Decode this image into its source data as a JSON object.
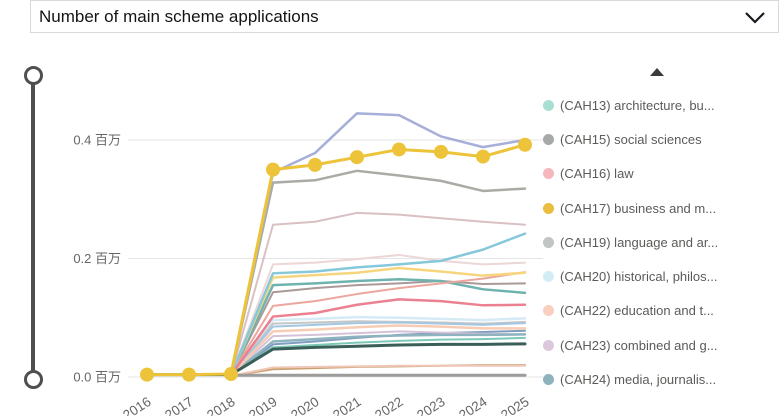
{
  "header": {
    "title": "Number of main scheme applications",
    "chevron_icon": "chevron-down"
  },
  "y_axis": {
    "labels": [
      "0.4 百万",
      "0.2 百万",
      "0.0 百万"
    ],
    "unit": "百万"
  },
  "x_axis": {
    "labels": [
      "2016",
      "2017",
      "2018",
      "2019",
      "2020",
      "2021",
      "2022",
      "2023",
      "2024",
      "2025"
    ]
  },
  "slider": {
    "type": "vertical-range",
    "handles": [
      "max",
      "min"
    ]
  },
  "legend": {
    "scroll_up_icon": "triangle-up",
    "items": [
      {
        "label": "(CAH13) architecture, bu...",
        "color": "#a9dfd3"
      },
      {
        "label": "(CAH15) social sciences",
        "color": "#a7a9a9"
      },
      {
        "label": "(CAH16) law",
        "color": "#f5b7bc"
      },
      {
        "label": "(CAH17) business and m...",
        "color": "#e9bd3e"
      },
      {
        "label": "(CAH19) language and ar...",
        "color": "#c2c5c5"
      },
      {
        "label": "(CAH20) historical, philos...",
        "color": "#d4ecf6"
      },
      {
        "label": "(CAH22) education and t...",
        "color": "#f9d0c0"
      },
      {
        "label": "(CAH23) combined and g...",
        "color": "#dcc7dc"
      },
      {
        "label": "(CAH24) media, journalis...",
        "color": "#8fb2bf"
      }
    ]
  },
  "chart_data": {
    "type": "line",
    "title": "Number of main scheme applications",
    "xlabel": "",
    "ylabel": "百万",
    "x": [
      "2016",
      "2017",
      "2018",
      "2019",
      "2020",
      "2021",
      "2022",
      "2023",
      "2024",
      "2025"
    ],
    "ylim": [
      0,
      0.46
    ],
    "gridlines": [
      0.4,
      0.2,
      0.0
    ],
    "grid": true,
    "legend_position": "right",
    "series": [
      {
        "name": "(CAH20) historical, philos...",
        "color": "#d5eaf5",
        "width": 2.5,
        "markers": false,
        "values": [
          null,
          null,
          0.003,
          0.096,
          0.098,
          0.101,
          0.1,
          0.098,
          0.096,
          0.099
        ]
      },
      {
        "name": "(CAH19) language and ar...",
        "color": "#c4c7c7",
        "width": 2,
        "markers": false,
        "values": [
          null,
          null,
          0.003,
          0.09,
          0.092,
          0.094,
          0.093,
          0.092,
          0.09,
          0.093
        ]
      },
      {
        "name": "",
        "color": "#a3c7e3",
        "width": 2,
        "markers": false,
        "values": [
          null,
          null,
          0.003,
          0.085,
          0.088,
          0.091,
          0.092,
          0.09,
          0.088,
          0.091
        ]
      },
      {
        "name": "",
        "color": "#ecd6d6",
        "width": 2,
        "markers": false,
        "values": [
          null,
          null,
          0.003,
          0.19,
          0.193,
          0.199,
          0.206,
          0.196,
          0.19,
          0.193
        ]
      },
      {
        "name": "",
        "color": "#ab9898",
        "width": 2,
        "markers": false,
        "values": [
          null,
          null,
          0.003,
          0.143,
          0.15,
          0.155,
          0.158,
          0.162,
          0.157,
          0.158
        ]
      },
      {
        "name": "",
        "color": "#7e9cc0",
        "width": 2,
        "markers": false,
        "values": [
          null,
          null,
          0.003,
          0.055,
          0.06,
          0.066,
          0.071,
          0.074,
          0.076,
          0.078
        ]
      },
      {
        "name": "(CAH23) combined and g...",
        "color": "#d5c2d8",
        "width": 2,
        "markers": false,
        "values": [
          null,
          null,
          0.003,
          0.069,
          0.071,
          0.074,
          0.077,
          0.075,
          0.073,
          0.072
        ]
      },
      {
        "name": "(CAH24) media, journalis...",
        "color": "#8fb2bf",
        "width": 2.5,
        "markers": false,
        "values": [
          null,
          null,
          0.003,
          0.06,
          0.064,
          0.068,
          0.07,
          0.071,
          0.071,
          0.072
        ]
      },
      {
        "name": "(CAH22) education and t...",
        "color": "#f7ccb4",
        "width": 2.5,
        "markers": false,
        "values": [
          null,
          null,
          0.003,
          0.077,
          0.08,
          0.084,
          0.087,
          0.085,
          0.082,
          0.082
        ]
      },
      {
        "name": "(CAH13) architecture, bu...",
        "color": "#7cc9b9",
        "width": 2,
        "markers": false,
        "values": [
          null,
          null,
          0.003,
          0.05,
          0.054,
          0.058,
          0.061,
          0.063,
          0.064,
          0.066
        ]
      },
      {
        "name": "",
        "color": "#6fb3ae",
        "width": 2.5,
        "markers": false,
        "values": [
          null,
          null,
          0.003,
          0.155,
          0.158,
          0.162,
          0.165,
          0.162,
          0.148,
          0.142
        ]
      },
      {
        "name": "",
        "color": "#eba69e",
        "width": 2,
        "markers": false,
        "values": [
          null,
          null,
          0.003,
          0.12,
          0.128,
          0.14,
          0.15,
          0.158,
          0.166,
          0.177
        ]
      },
      {
        "name": "",
        "color": "#f6d57d",
        "width": 2.5,
        "markers": false,
        "values": [
          null,
          null,
          0.003,
          0.168,
          0.172,
          0.176,
          0.184,
          0.178,
          0.171,
          0.176
        ]
      },
      {
        "name": "",
        "color": "#85c8da",
        "width": 2.5,
        "markers": false,
        "values": [
          null,
          null,
          0.003,
          0.175,
          0.178,
          0.185,
          0.19,
          0.196,
          0.215,
          0.242
        ]
      },
      {
        "name": "(CAH16) law",
        "color": "#ea8090",
        "width": 2.5,
        "markers": false,
        "values": [
          null,
          null,
          0.003,
          0.102,
          0.108,
          0.122,
          0.131,
          0.128,
          0.121,
          0.122
        ]
      },
      {
        "name": "",
        "color": "#c9a173",
        "width": 2,
        "markers": false,
        "values": [
          null,
          null,
          0.002,
          0.013,
          0.015,
          0.017,
          0.018,
          0.019,
          0.02,
          0.02
        ]
      },
      {
        "name": "",
        "color": "#f0c6b6",
        "width": 2,
        "markers": false,
        "values": [
          null,
          null,
          0.002,
          0.016,
          0.017,
          0.018,
          0.019,
          0.019,
          0.019,
          0.019
        ]
      },
      {
        "name": "",
        "color": "#9c9c9c",
        "width": 3,
        "markers": false,
        "values": [
          null,
          null,
          0.003,
          0.003,
          0.003,
          0.003,
          0.003,
          0.003,
          0.003,
          0.003
        ]
      },
      {
        "name": "",
        "color": "#3a5f58",
        "width": 3,
        "markers": false,
        "values": [
          0.004,
          0.004,
          0.004,
          0.047,
          0.05,
          0.052,
          0.054,
          0.055,
          0.055,
          0.056
        ]
      },
      {
        "name": "",
        "color": "#d9c0c3",
        "width": 2,
        "markers": false,
        "values": [
          null,
          null,
          0.003,
          0.257,
          0.262,
          0.277,
          0.274,
          0.268,
          0.262,
          0.257
        ]
      },
      {
        "name": "(CAH15) social sciences",
        "color": "#a8aca4",
        "width": 2.5,
        "markers": false,
        "values": [
          null,
          null,
          0.004,
          0.328,
          0.332,
          0.348,
          0.34,
          0.331,
          0.314,
          0.318
        ]
      },
      {
        "name": "",
        "color": "#a6aed9",
        "width": 2.5,
        "markers": false,
        "values": [
          null,
          null,
          0.004,
          0.345,
          0.378,
          0.445,
          0.442,
          0.406,
          0.388,
          0.4
        ]
      },
      {
        "name": "(CAH17) business and m...",
        "color": "#edc33a",
        "width": 3,
        "markers": true,
        "values": [
          0.004,
          0.004,
          0.005,
          0.35,
          0.358,
          0.371,
          0.384,
          0.38,
          0.372,
          0.392
        ]
      }
    ]
  }
}
